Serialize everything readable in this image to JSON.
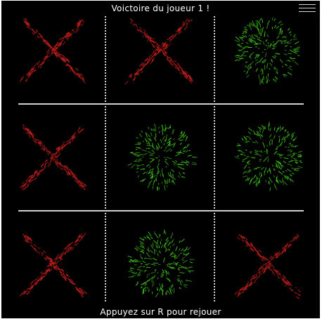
{
  "header": {
    "title": "Voictoire du joueur 1 !"
  },
  "footer": {
    "hint": "Appuyez sur R pour rejouer"
  },
  "menu": {
    "icon": "hamburger-menu-icon"
  },
  "board": {
    "rows": 3,
    "cols": 3,
    "cells": [
      "X",
      "X",
      "O",
      "X",
      "O",
      "O",
      "X",
      "O",
      "X"
    ]
  },
  "colors": {
    "background": "#000000",
    "x_mark": "#c8201a",
    "o_mark": "#3fc41a",
    "grid": "#d0d0d0",
    "text": "#ffffff"
  }
}
